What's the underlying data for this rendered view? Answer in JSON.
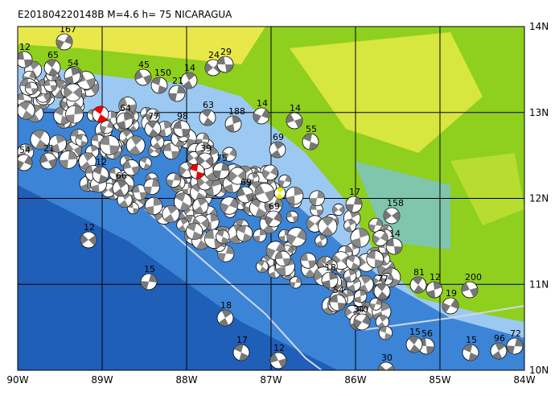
{
  "header": {
    "title": "E201804220148B M=4.6 h= 75 NICARAGUA"
  },
  "axes": {
    "x_labels": [
      "90W",
      "89W",
      "88W",
      "87W",
      "86W",
      "85W",
      "84W"
    ],
    "y_labels": [
      "14N",
      "13N",
      "12N",
      "11N",
      "10N"
    ]
  },
  "events": [
    "12",
    "65",
    "54",
    "167",
    "45",
    "150",
    "14",
    "21",
    "24",
    "29",
    "63",
    "188",
    "14",
    "14",
    "55",
    "69",
    "75",
    "39",
    "98",
    "77",
    "64",
    "54",
    "21",
    "12",
    "66",
    "17",
    "158",
    "14",
    "81",
    "12",
    "19",
    "200",
    "15",
    "96",
    "72",
    "30",
    "56",
    "15",
    "34",
    "40",
    "12",
    "17",
    "18",
    "15",
    "12",
    "54",
    "77",
    "18",
    "69",
    "69"
  ]
}
